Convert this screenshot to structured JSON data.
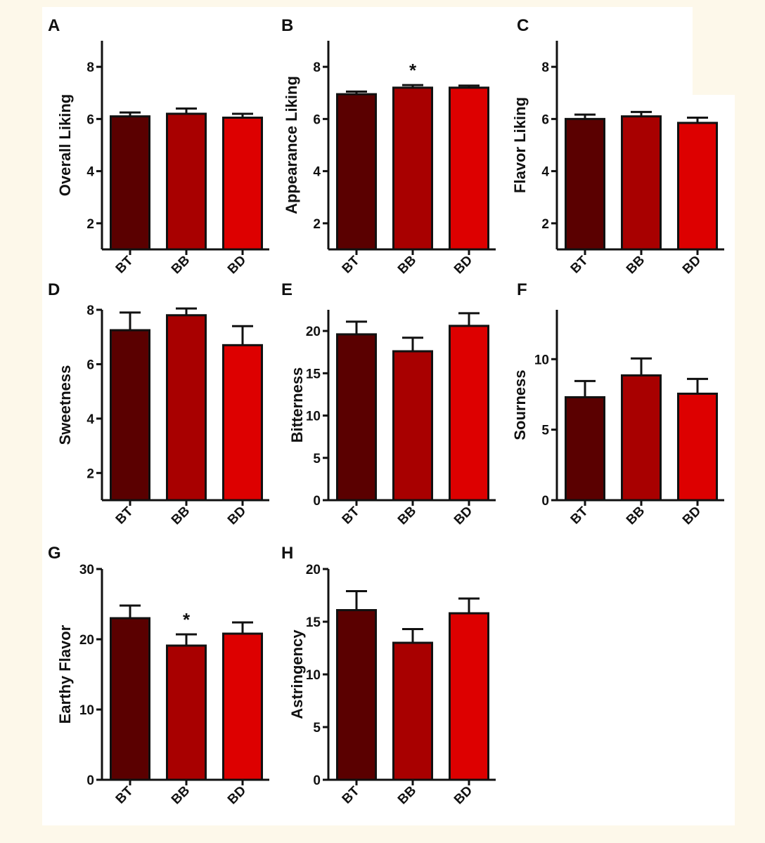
{
  "colors": {
    "BT": "#5a0000",
    "BB": "#a80000",
    "BD": "#dd0000",
    "axis": "#111111",
    "panel_bg": "#ffffff",
    "page_bg": "#fdf8ea"
  },
  "chart_data": [
    {
      "panel": "A",
      "type": "bar",
      "categories": [
        "BT",
        "BB",
        "BD"
      ],
      "values": [
        6.1,
        6.2,
        6.05
      ],
      "errors": [
        0.15,
        0.2,
        0.15
      ],
      "ylabel": "Overall Liking",
      "ylim": [
        1,
        9
      ],
      "yticks": [
        2,
        4,
        6,
        8
      ],
      "ytick_labels": [
        "2",
        "4",
        "6",
        "8"
      ],
      "significance": [
        null,
        null,
        null
      ]
    },
    {
      "panel": "B",
      "type": "bar",
      "categories": [
        "BT",
        "BB",
        "BD"
      ],
      "values": [
        6.95,
        7.2,
        7.2
      ],
      "errors": [
        0.1,
        0.1,
        0.08
      ],
      "ylabel": "Appearance Liking",
      "ylim": [
        1,
        9
      ],
      "yticks": [
        2,
        4,
        6,
        8
      ],
      "ytick_labels": [
        "2",
        "4",
        "6",
        "8"
      ],
      "significance": [
        null,
        "*",
        null
      ]
    },
    {
      "panel": "C",
      "type": "bar",
      "categories": [
        "BT",
        "BB",
        "BD"
      ],
      "values": [
        6.0,
        6.1,
        5.85
      ],
      "errors": [
        0.17,
        0.17,
        0.2
      ],
      "ylabel": "Flavor Liking",
      "ylim": [
        1,
        9
      ],
      "yticks": [
        2,
        4,
        6,
        8
      ],
      "ytick_labels": [
        "2",
        "4",
        "6",
        "8"
      ],
      "significance": [
        null,
        null,
        null
      ]
    },
    {
      "panel": "D",
      "type": "bar",
      "categories": [
        "BT",
        "BB",
        "BD"
      ],
      "values": [
        7.25,
        7.8,
        6.7
      ],
      "errors": [
        0.65,
        0.25,
        0.7
      ],
      "ylabel": "Sweetness",
      "ylim": [
        1,
        8
      ],
      "yticks": [
        2,
        4,
        6,
        8
      ],
      "ytick_labels": [
        "2",
        "4",
        "6",
        "8"
      ],
      "significance": [
        null,
        null,
        null
      ]
    },
    {
      "panel": "E",
      "type": "bar",
      "categories": [
        "BT",
        "BB",
        "BD"
      ],
      "values": [
        19.6,
        17.6,
        20.6
      ],
      "errors": [
        1.5,
        1.6,
        1.5
      ],
      "ylabel": "Bitterness",
      "ylim": [
        0,
        22.5
      ],
      "yticks": [
        0,
        5,
        10,
        15,
        20
      ],
      "ytick_labels": [
        "0",
        "5",
        "10",
        "15",
        "20"
      ],
      "significance": [
        null,
        null,
        null
      ]
    },
    {
      "panel": "F",
      "type": "bar",
      "categories": [
        "BT",
        "BB",
        "BD"
      ],
      "values": [
        7.3,
        8.85,
        7.55
      ],
      "errors": [
        1.15,
        1.2,
        1.05
      ],
      "ylabel": "Sourness",
      "ylim": [
        0,
        13.5
      ],
      "yticks": [
        0,
        5,
        10
      ],
      "ytick_labels": [
        "0",
        "5",
        "10"
      ],
      "significance": [
        null,
        null,
        null
      ]
    },
    {
      "panel": "G",
      "type": "bar",
      "categories": [
        "BT",
        "BB",
        "BD"
      ],
      "values": [
        23.0,
        19.1,
        20.8
      ],
      "errors": [
        1.8,
        1.6,
        1.6
      ],
      "ylabel": "Earthy Flavor",
      "ylim": [
        0,
        30
      ],
      "yticks": [
        0,
        10,
        20,
        30
      ],
      "ytick_labels": [
        "0",
        "10",
        "20",
        "30"
      ],
      "significance": [
        null,
        "*",
        null
      ]
    },
    {
      "panel": "H",
      "type": "bar",
      "categories": [
        "BT",
        "BB",
        "BD"
      ],
      "values": [
        16.1,
        13.0,
        15.8
      ],
      "errors": [
        1.8,
        1.3,
        1.4
      ],
      "ylabel": "Astringency",
      "ylim": [
        0,
        20
      ],
      "yticks": [
        0,
        5,
        10,
        15,
        20
      ],
      "ytick_labels": [
        "0",
        "5",
        "10",
        "15",
        "20"
      ],
      "significance": [
        null,
        null,
        null
      ]
    }
  ]
}
